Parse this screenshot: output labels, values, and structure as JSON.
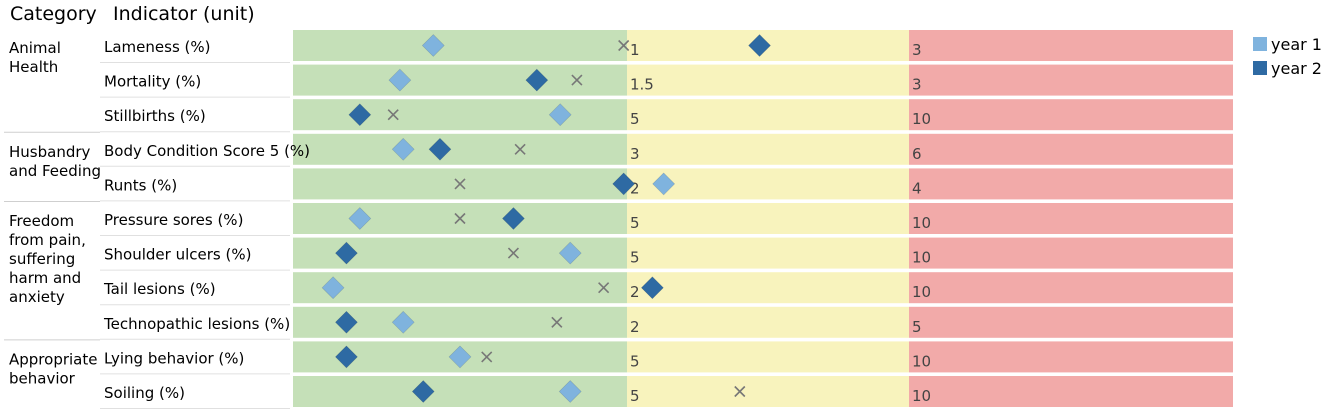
{
  "header": {
    "category_label": "Category",
    "indicator_label": "Indicator (unit)"
  },
  "legend": [
    {
      "label": "year 1",
      "color": "#7fb3de"
    },
    {
      "label": "year 2",
      "color": "#2e6aa3"
    }
  ],
  "colors": {
    "green": "#c5e0b8",
    "yellow": "#f8f3bd",
    "red": "#f2aaa9",
    "cross": "#777777"
  },
  "chart_data": {
    "type": "scatter",
    "markers": {
      "year 1": "diamond",
      "year 2": "diamond",
      "unlabeled": "x"
    },
    "categories": [
      {
        "name": "Animal Health",
        "lines": [
          "Animal",
          "Health"
        ],
        "rows": [
          0,
          1,
          2
        ]
      },
      {
        "name": "Husbandry and Feeding",
        "lines": [
          "Husbandry",
          "and Feeding"
        ],
        "rows": [
          3,
          4
        ]
      },
      {
        "name": "Freedom from pain, suffering harm and anxiety",
        "lines": [
          "Freedom",
          "from pain,",
          "suffering",
          "harm and",
          "anxiety"
        ],
        "rows": [
          5,
          6,
          7,
          8
        ]
      },
      {
        "name": "Appropriate behavior",
        "lines": [
          "Appropriate",
          "behavior"
        ],
        "rows": [
          9,
          10
        ]
      }
    ],
    "indicators": [
      {
        "label": "Lameness (%)",
        "t1": "1",
        "t2": "3",
        "y1": 0.42,
        "y2": 1.47,
        "x": 0.99
      },
      {
        "label": "Mortality (%)",
        "t1": "1.5",
        "t2": "3",
        "y1": 0.32,
        "y2": 0.73,
        "x": 0.85
      },
      {
        "label": "Stillbirths (%)",
        "t1": "5",
        "t2": "10",
        "y1": 0.8,
        "y2": 0.2,
        "x": 0.3
      },
      {
        "label": "Body Condition Score 5 (%)",
        "t1": "3",
        "t2": "6",
        "y1": 0.33,
        "y2": 0.44,
        "x": 0.68
      },
      {
        "label": "Runts (%)",
        "t1": "2",
        "t2": "4",
        "y1": 1.13,
        "y2": 0.99,
        "x": 0.5
      },
      {
        "label": "Pressure sores (%)",
        "t1": "5",
        "t2": "10",
        "y1": 0.2,
        "y2": 0.66,
        "x": 0.5
      },
      {
        "label": "Shoulder ulcers (%)",
        "t1": "5",
        "t2": "10",
        "y1": 0.83,
        "y2": 0.16,
        "x": 0.66
      },
      {
        "label": "Tail lesions (%)",
        "t1": "2",
        "t2": "10",
        "y1": 0.12,
        "y2": 1.09,
        "x": 0.93
      },
      {
        "label": "Technopathic lesions (%)",
        "t1": "2",
        "t2": "5",
        "y1": 0.33,
        "y2": 0.16,
        "x": 0.79
      },
      {
        "label": "Lying behavior (%)",
        "t1": "5",
        "t2": "10",
        "y1": 0.5,
        "y2": 0.16,
        "x": 0.58
      },
      {
        "label": "Soiling (%)",
        "t1": "5",
        "t2": "10",
        "y1": 0.83,
        "y2": 0.39,
        "x": 1.4
      }
    ]
  }
}
